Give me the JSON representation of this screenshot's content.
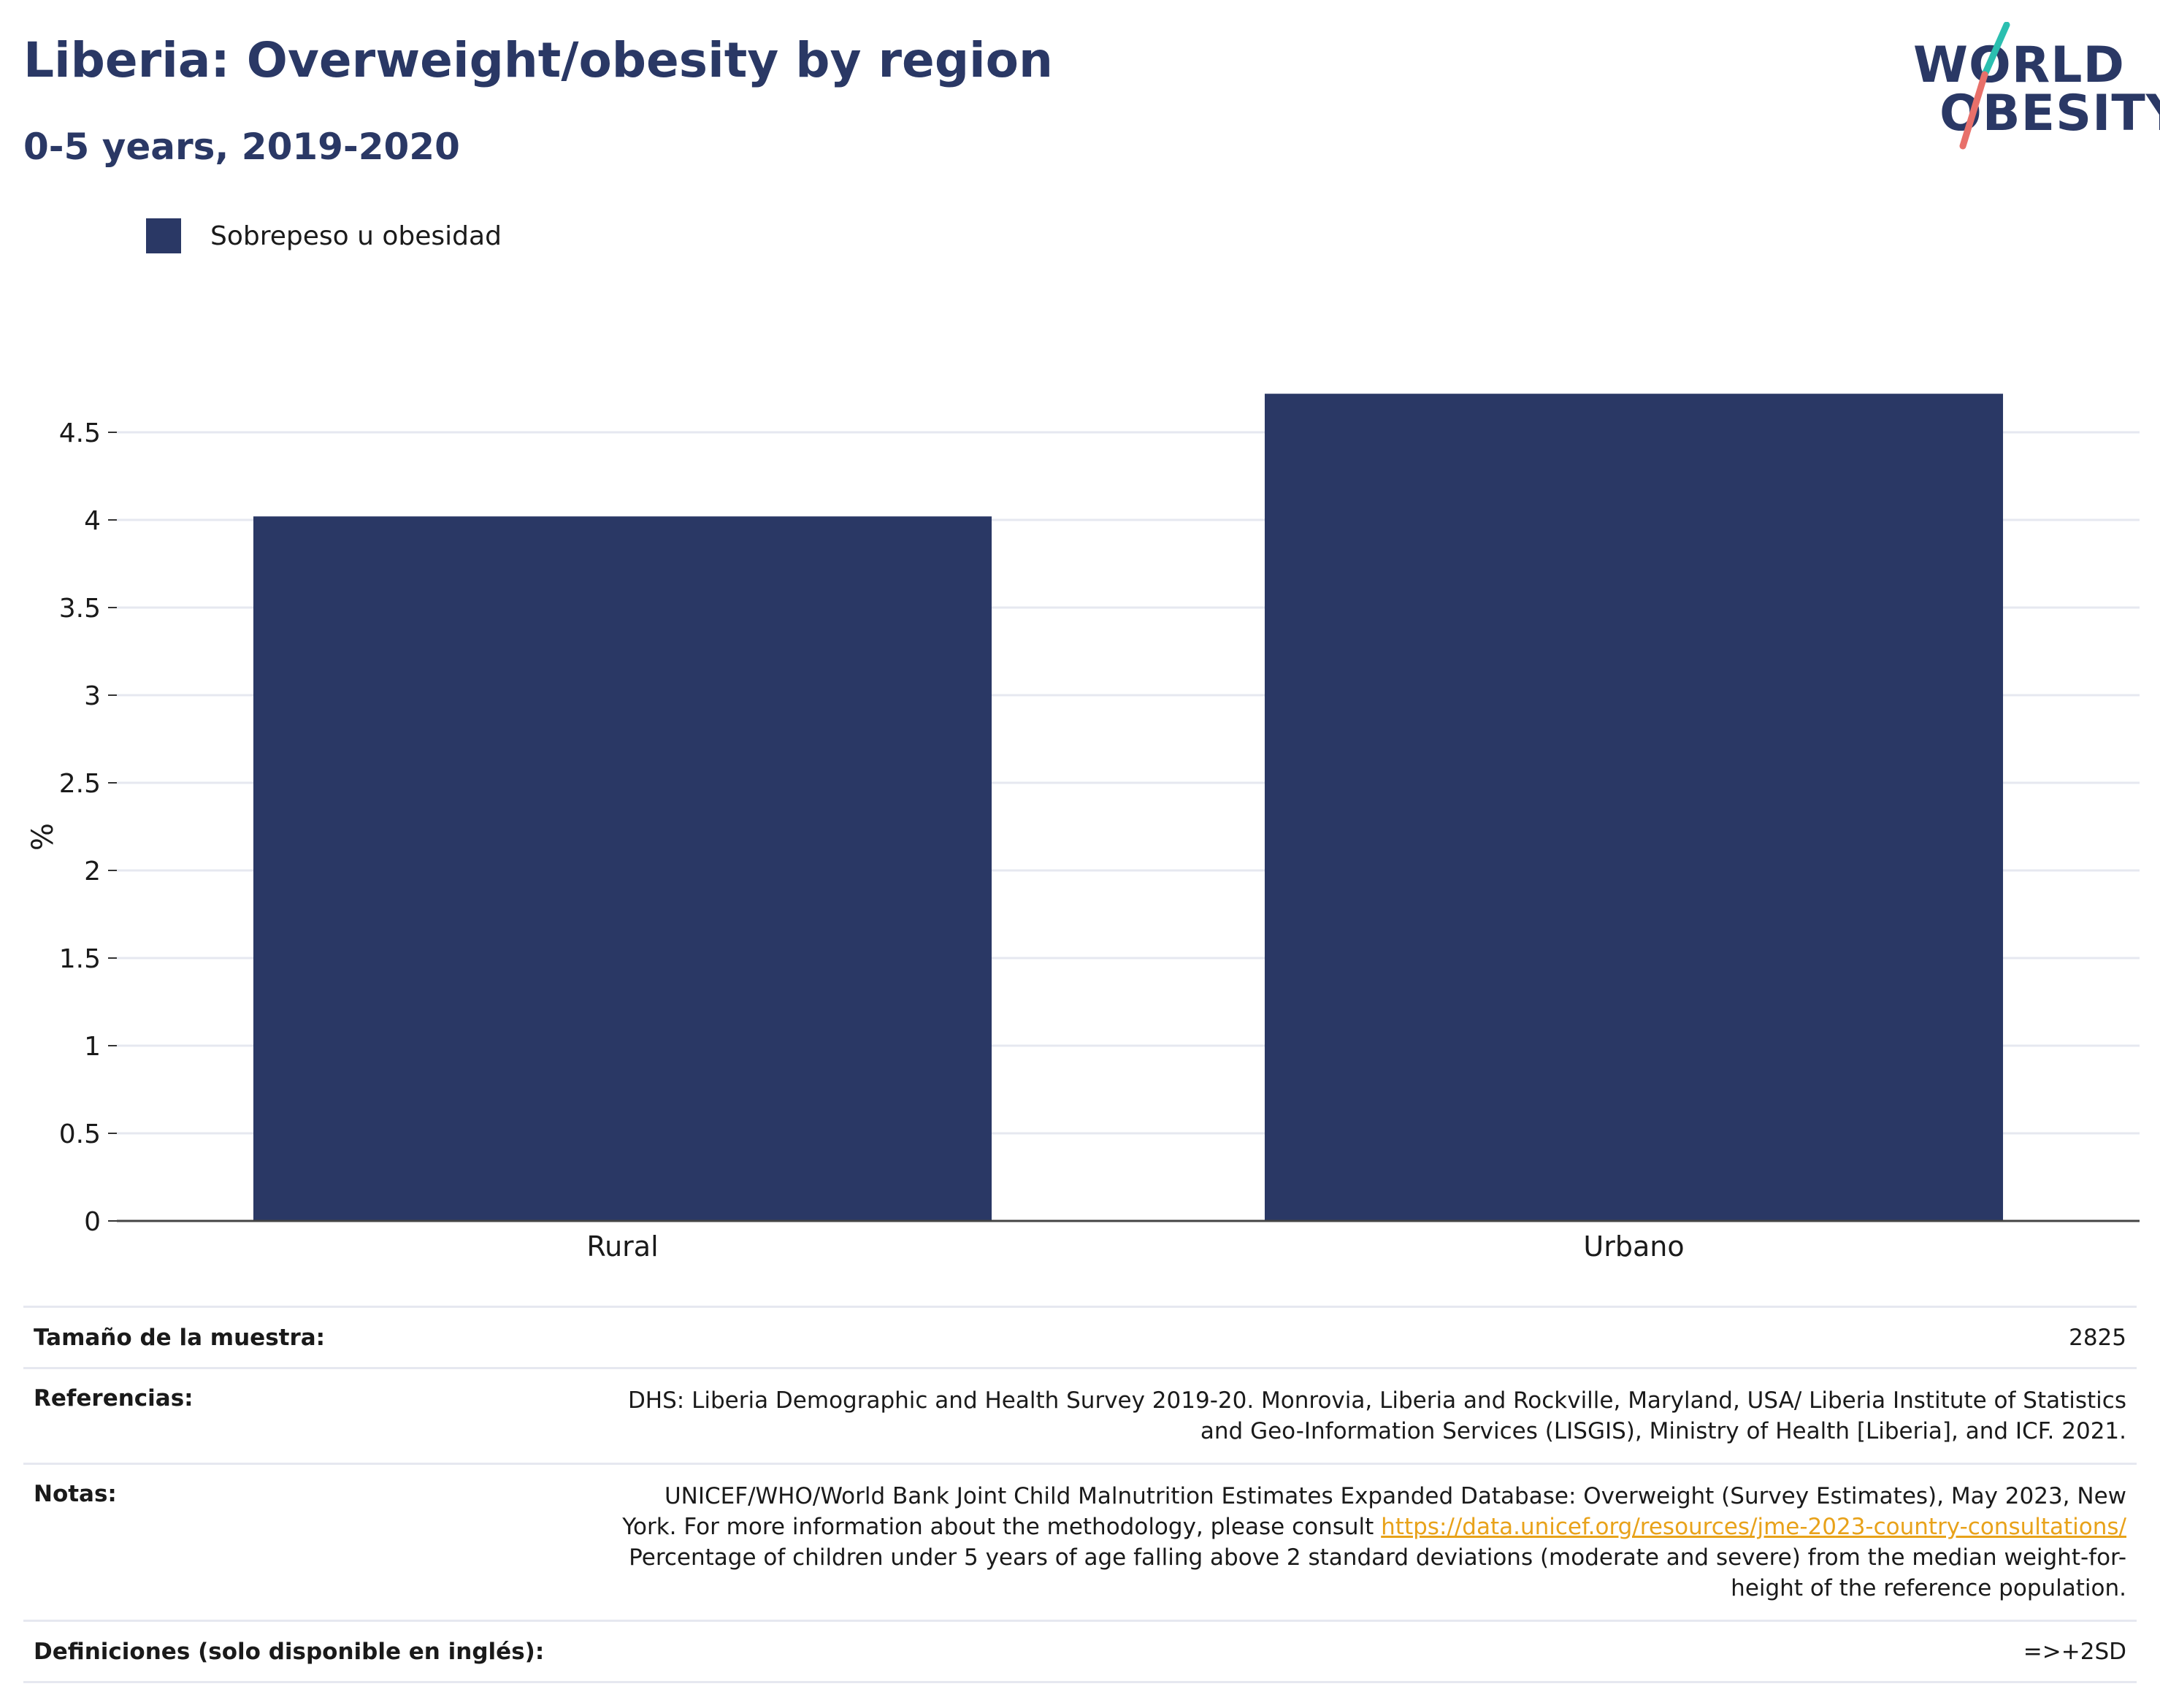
{
  "header": {
    "title": "Liberia: Overweight/obesity by region",
    "subtitle": "0-5 years, 2019-2020"
  },
  "logo": {
    "line1": "WORLD",
    "line2": "OBESITY",
    "colors": {
      "text": "#2a3865",
      "slash_top": "#2bbfb0",
      "slash_bottom": "#e8706a"
    }
  },
  "legend": {
    "items": [
      {
        "label": "Sobrepeso u obesidad",
        "color": "#2a3865"
      }
    ]
  },
  "chart_data": {
    "type": "bar",
    "categories": [
      "Rural",
      "Urbano"
    ],
    "series": [
      {
        "name": "Sobrepeso u obesidad",
        "values": [
          4.02,
          4.72
        ],
        "color": "#2a3865"
      }
    ],
    "ylabel": "%",
    "xlabel": "",
    "ylim": [
      0,
      4.8
    ],
    "yticks": [
      "0",
      "0.5",
      "1",
      "1.5",
      "2",
      "2.5",
      "3",
      "3.5",
      "4",
      "4.5"
    ],
    "grid": true,
    "legend_position": "top-left"
  },
  "info": {
    "sample_size": {
      "label": "Tamaño de la muestra:",
      "value": "2825"
    },
    "references": {
      "label": "Referencias:",
      "line1": "DHS: Liberia Demographic and Health Survey 2019-20. Monrovia, Liberia and Rockville, Maryland, USA/ Liberia Institute of Statistics",
      "line2": "and Geo-Information Services (LISGIS), Ministry of Health [Liberia], and ICF. 2021."
    },
    "notes": {
      "label": "Notas:",
      "line1": "UNICEF/WHO/World Bank Joint Child Malnutrition Estimates Expanded Database: Overweight (Survey Estimates), May 2023, New",
      "line2_pre": "York. For more information about the methodology, please consult ",
      "link": "https://data.unicef.org/resources/jme-2023-country-consultations/",
      "line3": "Percentage of children under 5 years of age falling above 2 standard deviations (moderate and severe) from the median weight-for-",
      "line4": "height of the reference population."
    },
    "definitions": {
      "label": "Definiciones (solo disponible en inglés):",
      "value": "=>+2SD"
    }
  }
}
